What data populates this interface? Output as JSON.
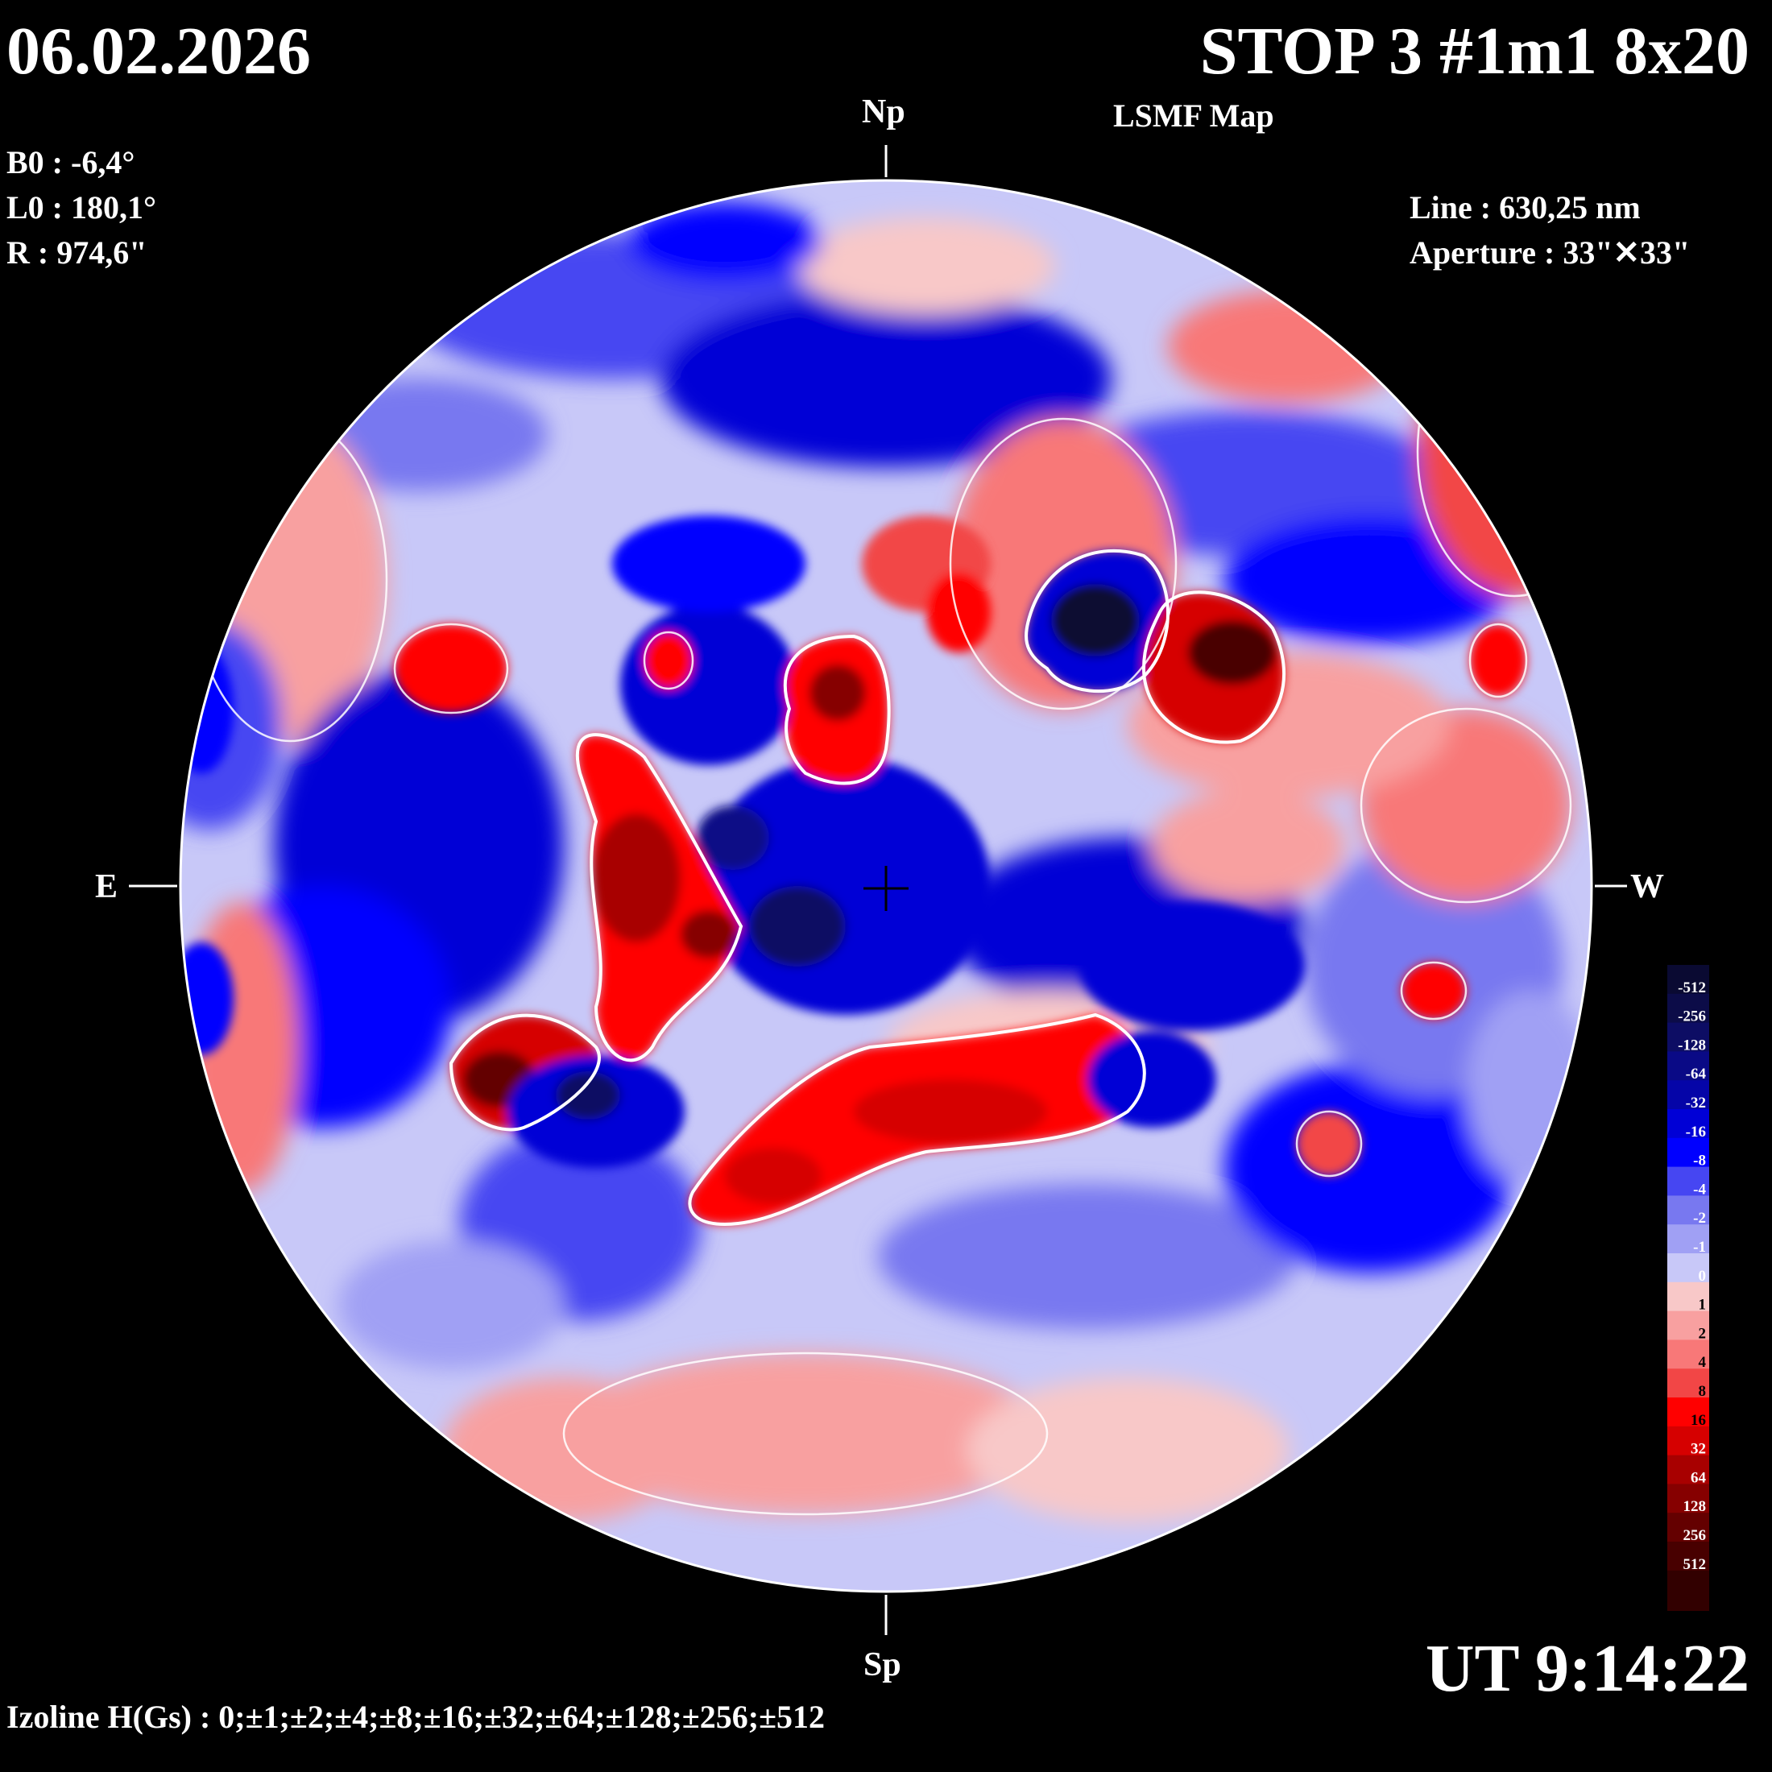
{
  "header": {
    "date": "06.02.2026",
    "title": "STOP 3 #1m1 8x20",
    "subtitle": "LSMF  Map"
  },
  "solar_params": {
    "b0": "B0 : -6,4°",
    "l0": "L0 : 180,1°",
    "r": "R  : 974,6\""
  },
  "instrument": {
    "line": "Line :  630,25 nm",
    "aperture": "Aperture : 33\"✕33\""
  },
  "directions": {
    "north": "Np",
    "south": "Sp",
    "east": "E",
    "west": "W"
  },
  "time": "UT 9:14:22",
  "izoline": "Izoline H(Gs) : 0;±1;±2;±4;±8;±16;±32;±64;±128;±256;±512",
  "color_scale": {
    "levels": [
      {
        "label": "-512",
        "color": "#0a0a32"
      },
      {
        "label": "-256",
        "color": "#0c0c48"
      },
      {
        "label": "-128",
        "color": "#0d0d64"
      },
      {
        "label": "-64",
        "color": "#0a0a86"
      },
      {
        "label": "-32",
        "color": "#0505a8"
      },
      {
        "label": "-16",
        "color": "#0000d6"
      },
      {
        "label": "-8",
        "color": "#0000ff"
      },
      {
        "label": "-4",
        "color": "#4646f2"
      },
      {
        "label": "-2",
        "color": "#7878f0"
      },
      {
        "label": "-1",
        "color": "#a0a0f4"
      },
      {
        "label": "0",
        "color": "#c8c8f8"
      },
      {
        "label": "1",
        "color": "#f8c8c8"
      },
      {
        "label": "2",
        "color": "#f8a0a0"
      },
      {
        "label": "4",
        "color": "#f87878"
      },
      {
        "label": "8",
        "color": "#f24646"
      },
      {
        "label": "16",
        "color": "#ff0000"
      },
      {
        "label": "32",
        "color": "#d60000"
      },
      {
        "label": "64",
        "color": "#a80000"
      },
      {
        "label": "128",
        "color": "#860000"
      },
      {
        "label": "256",
        "color": "#640000"
      },
      {
        "label": "512",
        "color": "#480000"
      }
    ],
    "bottom_color": "#320000"
  }
}
